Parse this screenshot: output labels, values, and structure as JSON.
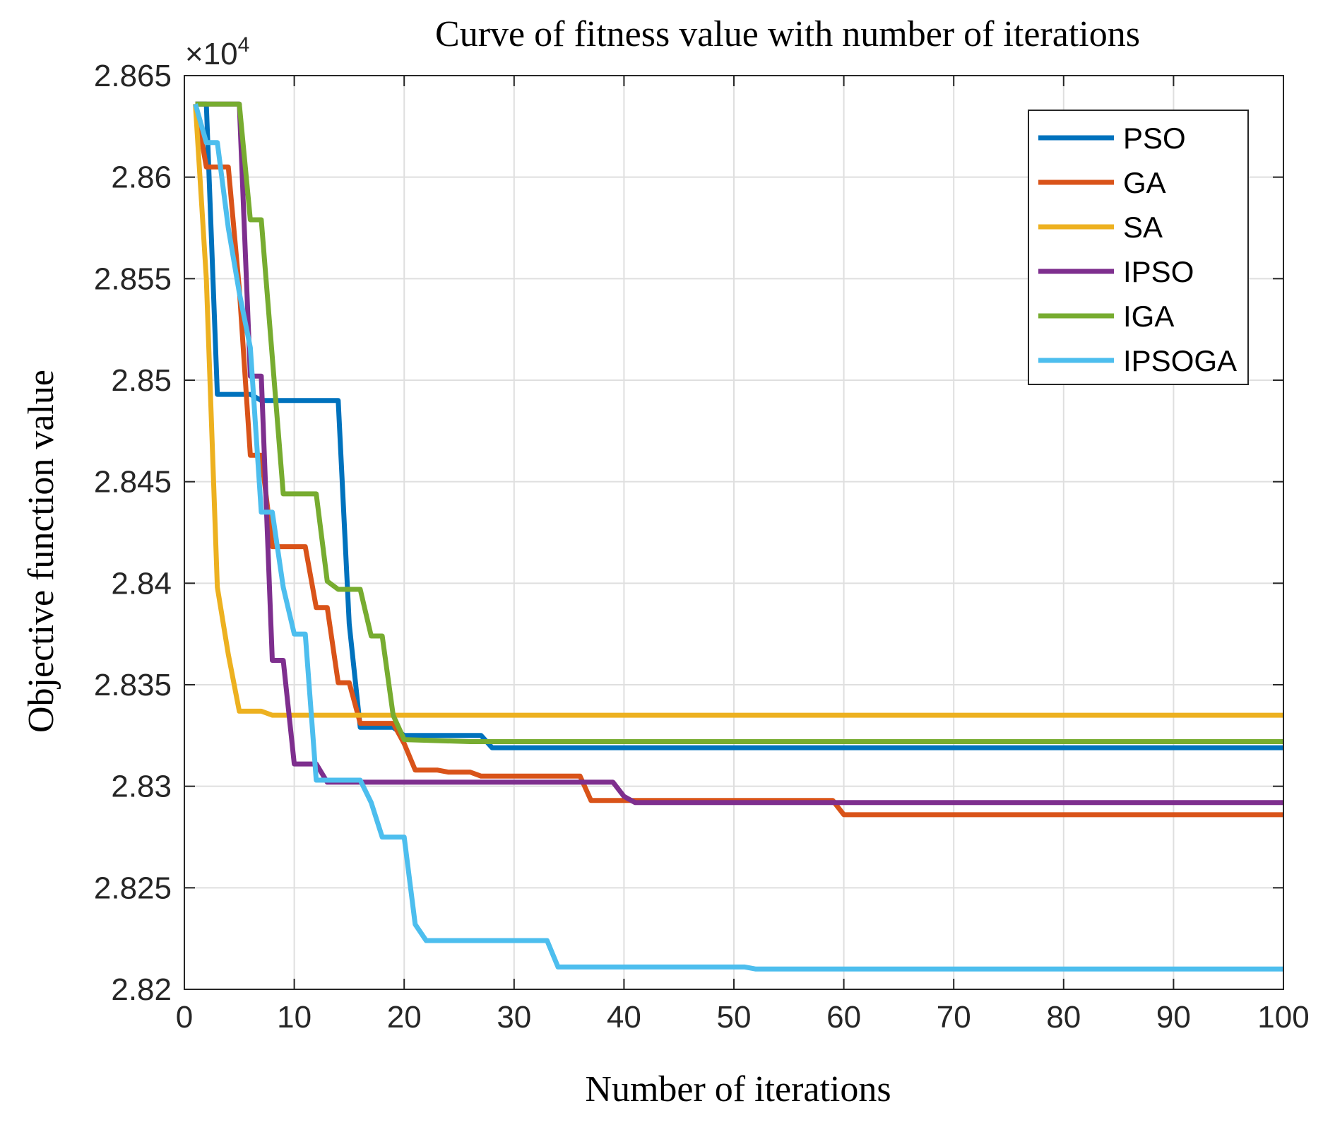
{
  "chart_data": {
    "type": "line",
    "title": "Curve of fitness value with number of iterations",
    "xlabel": "Number of iterations",
    "ylabel": "Objective function value",
    "y_exponent_label": "×10",
    "y_exponent_power": "4",
    "xlim": [
      0,
      100
    ],
    "ylim": [
      2.82,
      2.865
    ],
    "x_ticks": [
      0,
      10,
      20,
      30,
      40,
      50,
      60,
      70,
      80,
      90,
      100
    ],
    "x_tick_labels": [
      "0",
      "10",
      "20",
      "30",
      "40",
      "50",
      "60",
      "70",
      "80",
      "90",
      "100"
    ],
    "y_ticks": [
      2.82,
      2.825,
      2.83,
      2.835,
      2.84,
      2.845,
      2.85,
      2.855,
      2.86,
      2.865
    ],
    "y_tick_labels": [
      "2.82",
      "2.825",
      "2.83",
      "2.835",
      "2.84",
      "2.845",
      "2.85",
      "2.855",
      "2.86",
      "2.865"
    ],
    "grid": true,
    "legend_position": "top-right",
    "series": [
      {
        "name": "PSO",
        "color": "#0072BD",
        "points": [
          [
            1,
            2.8636
          ],
          [
            2,
            2.8636
          ],
          [
            3,
            2.8493
          ],
          [
            4,
            2.8493
          ],
          [
            6,
            2.8493
          ],
          [
            7,
            2.849
          ],
          [
            14,
            2.849
          ],
          [
            15,
            2.838
          ],
          [
            16,
            2.8329
          ],
          [
            19,
            2.8329
          ],
          [
            20,
            2.8325
          ],
          [
            27,
            2.8325
          ],
          [
            28,
            2.8319
          ],
          [
            100,
            2.8319
          ]
        ]
      },
      {
        "name": "GA",
        "color": "#D95319",
        "points": [
          [
            1,
            2.8636
          ],
          [
            2,
            2.8605
          ],
          [
            4,
            2.8605
          ],
          [
            5,
            2.8545
          ],
          [
            6,
            2.8463
          ],
          [
            7,
            2.8463
          ],
          [
            8,
            2.8418
          ],
          [
            11,
            2.8418
          ],
          [
            12,
            2.8388
          ],
          [
            13,
            2.8388
          ],
          [
            14,
            2.8351
          ],
          [
            15,
            2.8351
          ],
          [
            16,
            2.8331
          ],
          [
            19,
            2.8331
          ],
          [
            20,
            2.8321
          ],
          [
            21,
            2.8308
          ],
          [
            23,
            2.8308
          ],
          [
            24,
            2.8307
          ],
          [
            26,
            2.8307
          ],
          [
            27,
            2.8305
          ],
          [
            36,
            2.8305
          ],
          [
            37,
            2.8293
          ],
          [
            59,
            2.8293
          ],
          [
            60,
            2.8286
          ],
          [
            100,
            2.8286
          ]
        ]
      },
      {
        "name": "SA",
        "color": "#EDB120",
        "points": [
          [
            1,
            2.8636
          ],
          [
            2,
            2.855
          ],
          [
            3,
            2.8398
          ],
          [
            4,
            2.8365
          ],
          [
            5,
            2.8337
          ],
          [
            7,
            2.8337
          ],
          [
            8,
            2.8335
          ],
          [
            100,
            2.8335
          ]
        ]
      },
      {
        "name": "IPSO",
        "color": "#7E2F8E",
        "points": [
          [
            1,
            2.8636
          ],
          [
            4,
            2.8636
          ],
          [
            5,
            2.8636
          ],
          [
            6,
            2.8502
          ],
          [
            7,
            2.8502
          ],
          [
            8,
            2.8362
          ],
          [
            9,
            2.8362
          ],
          [
            10,
            2.8311
          ],
          [
            12,
            2.8311
          ],
          [
            13,
            2.8302
          ],
          [
            39,
            2.8302
          ],
          [
            40,
            2.8295
          ],
          [
            41,
            2.8292
          ],
          [
            100,
            2.8292
          ]
        ]
      },
      {
        "name": "IGA",
        "color": "#77AC30",
        "points": [
          [
            1,
            2.8636
          ],
          [
            5,
            2.8636
          ],
          [
            6,
            2.8579
          ],
          [
            7,
            2.8579
          ],
          [
            9,
            2.8444
          ],
          [
            12,
            2.8444
          ],
          [
            13,
            2.8401
          ],
          [
            14,
            2.8397
          ],
          [
            16,
            2.8397
          ],
          [
            17,
            2.8374
          ],
          [
            18,
            2.8374
          ],
          [
            19,
            2.8335
          ],
          [
            20,
            2.8323
          ],
          [
            26,
            2.8322
          ],
          [
            100,
            2.8322
          ]
        ]
      },
      {
        "name": "IPSOGA",
        "color": "#4DBEEE",
        "points": [
          [
            1,
            2.8636
          ],
          [
            2,
            2.8617
          ],
          [
            3,
            2.8617
          ],
          [
            4,
            2.8575
          ],
          [
            5,
            2.8543
          ],
          [
            6,
            2.8516
          ],
          [
            7,
            2.8435
          ],
          [
            8,
            2.8435
          ],
          [
            9,
            2.8398
          ],
          [
            10,
            2.8375
          ],
          [
            11,
            2.8375
          ],
          [
            12,
            2.8303
          ],
          [
            16,
            2.8303
          ],
          [
            17,
            2.8292
          ],
          [
            18,
            2.8275
          ],
          [
            20,
            2.8275
          ],
          [
            21,
            2.8232
          ],
          [
            22,
            2.8224
          ],
          [
            33,
            2.8224
          ],
          [
            34,
            2.8211
          ],
          [
            51,
            2.8211
          ],
          [
            52,
            2.821
          ],
          [
            100,
            2.821
          ]
        ]
      }
    ]
  }
}
